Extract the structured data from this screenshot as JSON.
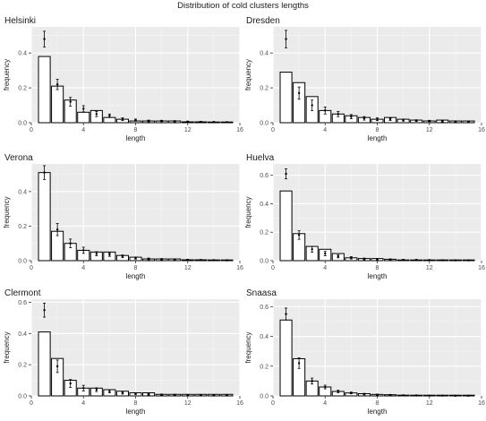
{
  "title": "Distribution of cold clusters lengths",
  "chart_data": [
    {
      "type": "bar",
      "title": "Helsinki",
      "xlabel": "length",
      "ylabel": "frequency",
      "xlim": [
        0,
        16
      ],
      "ylim": [
        0,
        0.55
      ],
      "xticks": [
        0,
        4,
        8,
        12,
        16
      ],
      "yticks": [
        0.0,
        0.2,
        0.4
      ],
      "grid": true,
      "x": [
        1,
        2,
        3,
        4,
        5,
        6,
        7,
        8,
        9,
        10,
        11,
        12,
        13,
        14,
        15
      ],
      "values": [
        0.38,
        0.21,
        0.13,
        0.06,
        0.07,
        0.03,
        0.02,
        0.01,
        0.01,
        0.01,
        0.01,
        0.005,
        0.005,
        0.003,
        0.003
      ],
      "points": [
        0.48,
        0.22,
        0.12,
        0.08,
        0.05,
        0.04,
        0.02,
        0.015,
        0.01,
        0.01,
        0.008,
        0.006,
        0.005,
        0.004,
        0.003
      ],
      "errors": [
        0.045,
        0.03,
        0.025,
        0.018,
        0.015,
        0.01,
        0.008,
        0.006,
        0.005,
        0.004,
        0.004,
        0.003,
        0.003,
        0.002,
        0.002
      ]
    },
    {
      "type": "bar",
      "title": "Dresden",
      "xlabel": "length",
      "ylabel": "frequency",
      "xlim": [
        0,
        16
      ],
      "ylim": [
        0,
        0.55
      ],
      "xticks": [
        0,
        4,
        8,
        12,
        16
      ],
      "yticks": [
        0.0,
        0.2,
        0.4
      ],
      "grid": true,
      "x": [
        1,
        2,
        3,
        4,
        5,
        6,
        7,
        8,
        9,
        10,
        11,
        12,
        13,
        14,
        15
      ],
      "values": [
        0.29,
        0.23,
        0.15,
        0.07,
        0.05,
        0.04,
        0.03,
        0.02,
        0.03,
        0.02,
        0.015,
        0.01,
        0.015,
        0.01,
        0.01
      ],
      "points": [
        0.48,
        0.17,
        0.1,
        0.07,
        0.05,
        0.035,
        0.025,
        0.02,
        0.02,
        0.015,
        0.012,
        0.01,
        0.008,
        0.006,
        0.005
      ],
      "errors": [
        0.05,
        0.035,
        0.03,
        0.02,
        0.015,
        0.012,
        0.01,
        0.008,
        0.007,
        0.006,
        0.005,
        0.004,
        0.004,
        0.003,
        0.003
      ]
    },
    {
      "type": "bar",
      "title": "Verona",
      "xlabel": "length",
      "ylabel": "frequency",
      "xlim": [
        0,
        16
      ],
      "ylim": [
        0,
        0.56
      ],
      "xticks": [
        0,
        4,
        8,
        12,
        16
      ],
      "yticks": [
        0.0,
        0.2,
        0.4
      ],
      "grid": true,
      "x": [
        1,
        2,
        3,
        4,
        5,
        6,
        7,
        8,
        9,
        10,
        11,
        12,
        13,
        14,
        15
      ],
      "values": [
        0.51,
        0.17,
        0.1,
        0.06,
        0.05,
        0.05,
        0.03,
        0.02,
        0.01,
        0.01,
        0.01,
        0.005,
        0.005,
        0.003,
        0.003
      ],
      "points": [
        0.51,
        0.18,
        0.1,
        0.06,
        0.04,
        0.035,
        0.025,
        0.015,
        0.01,
        0.008,
        0.007,
        0.005,
        0.004,
        0.003,
        0.002
      ],
      "errors": [
        0.04,
        0.035,
        0.025,
        0.018,
        0.012,
        0.01,
        0.008,
        0.006,
        0.005,
        0.004,
        0.003,
        0.003,
        0.002,
        0.002,
        0.002
      ]
    },
    {
      "type": "bar",
      "title": "Huelva",
      "xlabel": "length",
      "ylabel": "frequency",
      "xlim": [
        0,
        16
      ],
      "ylim": [
        0,
        0.68
      ],
      "xticks": [
        0,
        4,
        8,
        12,
        16
      ],
      "yticks": [
        0.0,
        0.2,
        0.4,
        0.6
      ],
      "grid": true,
      "x": [
        1,
        2,
        3,
        4,
        5,
        6,
        7,
        8,
        9,
        10,
        11,
        12,
        13,
        14,
        15
      ],
      "values": [
        0.49,
        0.19,
        0.1,
        0.08,
        0.05,
        0.02,
        0.015,
        0.015,
        0.01,
        0.005,
        0.005,
        0.004,
        0.004,
        0.003,
        0.003
      ],
      "points": [
        0.61,
        0.18,
        0.08,
        0.05,
        0.03,
        0.02,
        0.012,
        0.01,
        0.008,
        0.006,
        0.005,
        0.004,
        0.003,
        0.002,
        0.002
      ],
      "errors": [
        0.035,
        0.03,
        0.02,
        0.015,
        0.01,
        0.008,
        0.006,
        0.005,
        0.004,
        0.003,
        0.003,
        0.002,
        0.002,
        0.002,
        0.001
      ]
    },
    {
      "type": "bar",
      "title": "Clermont",
      "xlabel": "length",
      "ylabel": "frequency",
      "xlim": [
        0,
        16
      ],
      "ylim": [
        0,
        0.62
      ],
      "xticks": [
        0,
        4,
        8,
        12,
        16
      ],
      "yticks": [
        0.0,
        0.2,
        0.4,
        0.6
      ],
      "grid": true,
      "x": [
        1,
        2,
        3,
        4,
        5,
        6,
        7,
        8,
        9,
        10,
        11,
        12,
        13,
        14,
        15
      ],
      "values": [
        0.41,
        0.24,
        0.1,
        0.05,
        0.05,
        0.04,
        0.03,
        0.02,
        0.02,
        0.01,
        0.01,
        0.01,
        0.01,
        0.01,
        0.01
      ],
      "points": [
        0.55,
        0.19,
        0.08,
        0.05,
        0.04,
        0.03,
        0.02,
        0.015,
        0.01,
        0.008,
        0.007,
        0.005,
        0.004,
        0.003,
        0.003
      ],
      "errors": [
        0.045,
        0.04,
        0.025,
        0.018,
        0.012,
        0.01,
        0.008,
        0.006,
        0.005,
        0.004,
        0.003,
        0.003,
        0.002,
        0.002,
        0.002
      ]
    },
    {
      "type": "bar",
      "title": "Snaasa",
      "xlabel": "length",
      "ylabel": "frequency",
      "xlim": [
        0,
        16
      ],
      "ylim": [
        0,
        0.65
      ],
      "xticks": [
        0,
        4,
        8,
        12,
        16
      ],
      "yticks": [
        0.0,
        0.2,
        0.4,
        0.6
      ],
      "grid": true,
      "x": [
        1,
        2,
        3,
        4,
        5,
        6,
        7,
        8,
        9,
        10,
        11,
        12,
        13,
        14,
        15
      ],
      "values": [
        0.51,
        0.25,
        0.1,
        0.06,
        0.03,
        0.02,
        0.015,
        0.01,
        0.008,
        0.005,
        0.004,
        0.003,
        0.003,
        0.002,
        0.002
      ],
      "points": [
        0.55,
        0.22,
        0.1,
        0.06,
        0.03,
        0.02,
        0.012,
        0.008,
        0.006,
        0.004,
        0.003,
        0.002,
        0.002,
        0.001,
        0.001
      ],
      "errors": [
        0.04,
        0.035,
        0.02,
        0.012,
        0.008,
        0.006,
        0.005,
        0.004,
        0.003,
        0.002,
        0.002,
        0.001,
        0.001,
        0.001,
        0.001
      ]
    }
  ]
}
